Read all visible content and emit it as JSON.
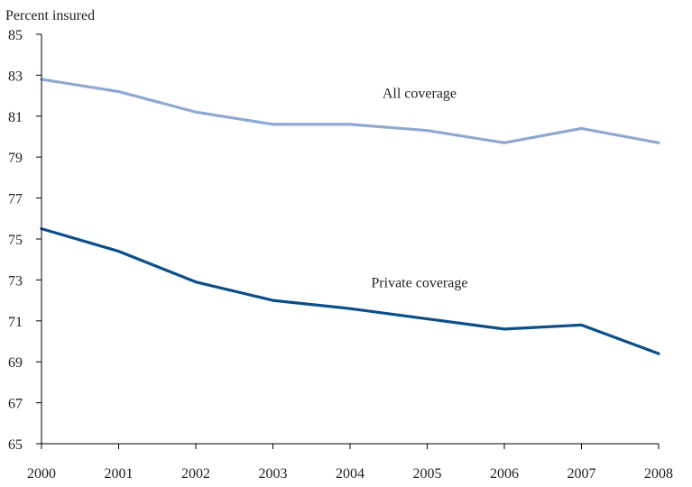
{
  "chart_data": {
    "type": "line",
    "title": "",
    "ylabel": "Percent insured",
    "xlabel": "",
    "x": [
      2000,
      2001,
      2002,
      2003,
      2004,
      2005,
      2006,
      2007,
      2008
    ],
    "ylim": [
      65,
      85
    ],
    "yticks": [
      65,
      67,
      69,
      71,
      73,
      75,
      77,
      79,
      81,
      83,
      85
    ],
    "grid": false,
    "legend": "none",
    "series": [
      {
        "name": "All coverage",
        "color": "#8ea9d1",
        "values": [
          82.8,
          82.2,
          81.2,
          80.6,
          80.6,
          80.3,
          79.7,
          80.4,
          79.7
        ]
      },
      {
        "name": "Private coverage",
        "color": "#0b4f8a",
        "values": [
          75.5,
          74.4,
          72.9,
          72.0,
          71.6,
          71.1,
          70.6,
          70.8,
          69.4
        ]
      }
    ]
  }
}
